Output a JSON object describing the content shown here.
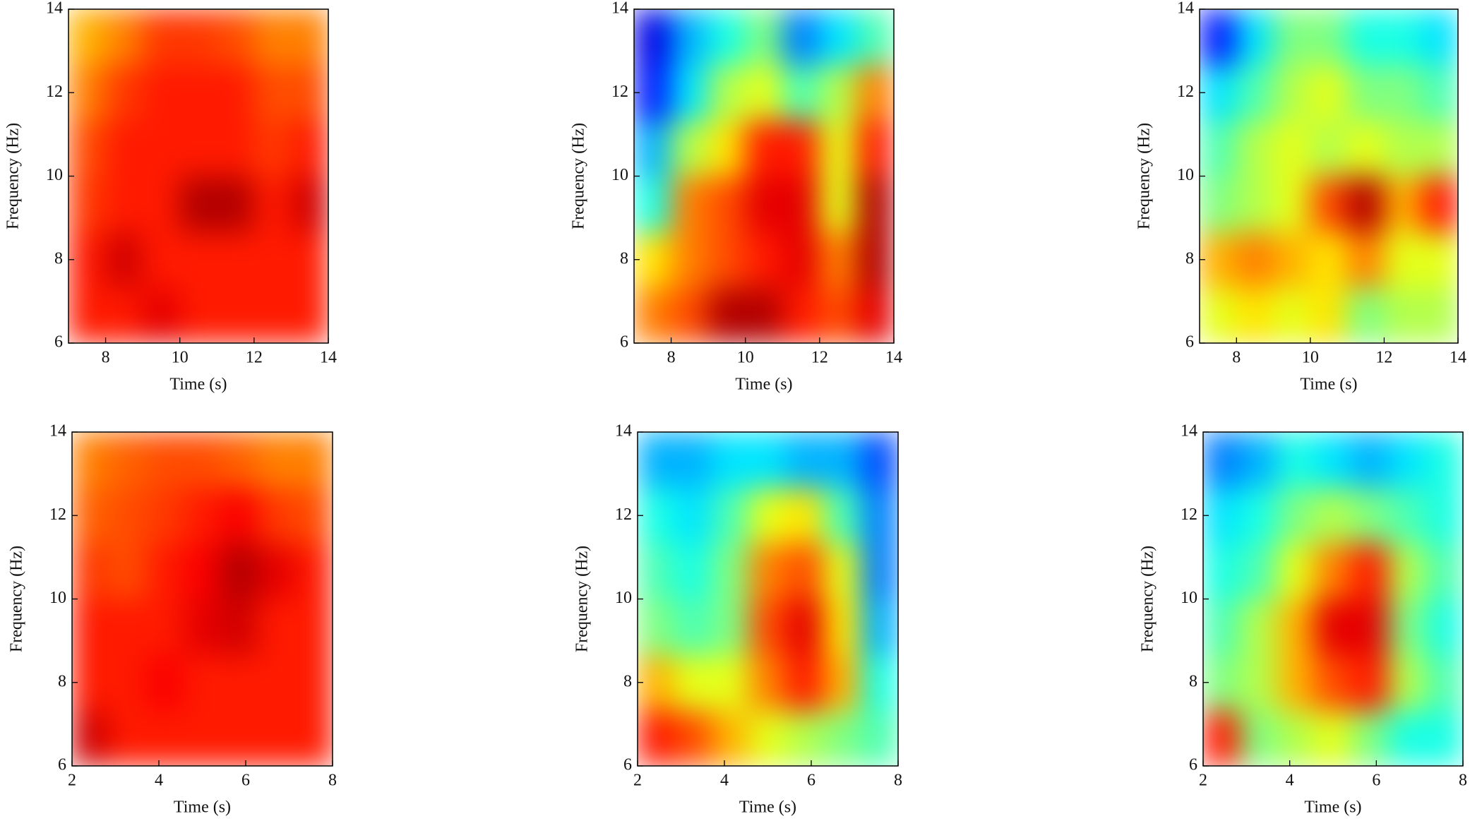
{
  "chart_data": [
    {
      "type": "heatmap",
      "colormap": "jet",
      "xlabel": "Time (s)",
      "ylabel": "Frequency (Hz)",
      "xlim": [
        7,
        14
      ],
      "ylim": [
        6,
        14
      ],
      "xticks": [
        8,
        10,
        12,
        14
      ],
      "yticks": [
        6,
        8,
        10,
        12,
        14
      ],
      "zlim": [
        0,
        1
      ],
      "z": [
        [
          0.85,
          0.85,
          0.9,
          0.85,
          0.85,
          0.85,
          0.85
        ],
        [
          0.85,
          0.92,
          0.85,
          0.85,
          0.85,
          0.85,
          0.85
        ],
        [
          0.82,
          0.85,
          0.85,
          0.95,
          0.95,
          0.85,
          0.92
        ],
        [
          0.8,
          0.85,
          0.85,
          0.85,
          0.85,
          0.82,
          0.85
        ],
        [
          0.75,
          0.82,
          0.85,
          0.85,
          0.85,
          0.8,
          0.8
        ],
        [
          0.7,
          0.75,
          0.82,
          0.82,
          0.8,
          0.75,
          0.75
        ]
      ]
    },
    {
      "type": "heatmap",
      "colormap": "jet",
      "xlabel": "Time (s)",
      "ylabel": "Frequency (Hz)",
      "xlim": [
        7,
        14
      ],
      "ylim": [
        6,
        14
      ],
      "xticks": [
        8,
        10,
        12,
        14
      ],
      "yticks": [
        6,
        8,
        10,
        12,
        14
      ],
      "zlim": [
        0,
        1
      ],
      "z": [
        [
          0.75,
          0.8,
          0.95,
          0.95,
          0.85,
          0.8,
          0.9
        ],
        [
          0.65,
          0.75,
          0.8,
          0.85,
          0.9,
          0.75,
          0.95
        ],
        [
          0.4,
          0.75,
          0.8,
          0.9,
          0.9,
          0.6,
          0.95
        ],
        [
          0.3,
          0.55,
          0.65,
          0.85,
          0.85,
          0.6,
          0.85
        ],
        [
          0.15,
          0.35,
          0.55,
          0.6,
          0.45,
          0.55,
          0.75
        ],
        [
          0.1,
          0.3,
          0.4,
          0.5,
          0.25,
          0.35,
          0.45
        ]
      ]
    },
    {
      "type": "heatmap",
      "colormap": "jet",
      "xlabel": "Time (s)",
      "ylabel": "Frequency (Hz)",
      "xlim": [
        7,
        14
      ],
      "ylim": [
        6,
        14
      ],
      "xticks": [
        8,
        10,
        12,
        14
      ],
      "yticks": [
        6,
        8,
        10,
        12,
        14
      ],
      "zlim": [
        0,
        1
      ],
      "z": [
        [
          0.6,
          0.65,
          0.6,
          0.65,
          0.5,
          0.55,
          0.55
        ],
        [
          0.7,
          0.75,
          0.7,
          0.65,
          0.75,
          0.6,
          0.6
        ],
        [
          0.5,
          0.55,
          0.6,
          0.8,
          0.95,
          0.7,
          0.85
        ],
        [
          0.45,
          0.55,
          0.6,
          0.55,
          0.6,
          0.55,
          0.55
        ],
        [
          0.35,
          0.45,
          0.55,
          0.6,
          0.5,
          0.5,
          0.45
        ],
        [
          0.15,
          0.35,
          0.5,
          0.5,
          0.4,
          0.4,
          0.35
        ]
      ]
    },
    {
      "type": "heatmap",
      "colormap": "jet",
      "xlabel": "Time (s)",
      "ylabel": "Frequency (Hz)",
      "xlim": [
        2,
        8
      ],
      "ylim": [
        6,
        14
      ],
      "xticks": [
        2,
        4,
        6,
        8
      ],
      "yticks": [
        6,
        8,
        10,
        12,
        14
      ],
      "zlim": [
        0,
        1
      ],
      "z": [
        [
          0.92,
          0.85,
          0.85,
          0.85,
          0.85,
          0.85,
          0.85
        ],
        [
          0.85,
          0.85,
          0.88,
          0.85,
          0.85,
          0.85,
          0.85
        ],
        [
          0.85,
          0.85,
          0.85,
          0.9,
          0.92,
          0.85,
          0.85
        ],
        [
          0.82,
          0.8,
          0.85,
          0.88,
          0.95,
          0.9,
          0.85
        ],
        [
          0.78,
          0.8,
          0.82,
          0.85,
          0.88,
          0.82,
          0.8
        ],
        [
          0.75,
          0.78,
          0.8,
          0.8,
          0.78,
          0.75,
          0.75
        ]
      ]
    },
    {
      "type": "heatmap",
      "colormap": "jet",
      "xlabel": "Time (s)",
      "ylabel": "Frequency (Hz)",
      "xlim": [
        2,
        8
      ],
      "ylim": [
        6,
        14
      ],
      "xticks": [
        2,
        4,
        6,
        8
      ],
      "yticks": [
        6,
        8,
        10,
        12,
        14
      ],
      "zlim": [
        0,
        1
      ],
      "z": [
        [
          0.85,
          0.8,
          0.7,
          0.6,
          0.55,
          0.5,
          0.45
        ],
        [
          0.7,
          0.6,
          0.6,
          0.75,
          0.85,
          0.7,
          0.4
        ],
        [
          0.5,
          0.45,
          0.5,
          0.8,
          0.9,
          0.65,
          0.3
        ],
        [
          0.45,
          0.4,
          0.5,
          0.75,
          0.8,
          0.6,
          0.25
        ],
        [
          0.4,
          0.35,
          0.45,
          0.6,
          0.65,
          0.45,
          0.25
        ],
        [
          0.3,
          0.3,
          0.35,
          0.35,
          0.3,
          0.3,
          0.2
        ]
      ]
    },
    {
      "type": "heatmap",
      "colormap": "jet",
      "xlabel": "Time (s)",
      "ylabel": "Frequency (Hz)",
      "xlim": [
        2,
        8
      ],
      "ylim": [
        6,
        14
      ],
      "xticks": [
        2,
        4,
        6,
        8
      ],
      "yticks": [
        6,
        8,
        10,
        12,
        14
      ],
      "zlim": [
        0,
        1
      ],
      "z": [
        [
          0.85,
          0.5,
          0.55,
          0.6,
          0.5,
          0.4,
          0.4
        ],
        [
          0.5,
          0.55,
          0.7,
          0.8,
          0.85,
          0.55,
          0.45
        ],
        [
          0.45,
          0.55,
          0.7,
          0.9,
          0.9,
          0.5,
          0.4
        ],
        [
          0.4,
          0.45,
          0.6,
          0.75,
          0.85,
          0.55,
          0.45
        ],
        [
          0.35,
          0.4,
          0.5,
          0.55,
          0.5,
          0.45,
          0.4
        ],
        [
          0.25,
          0.3,
          0.4,
          0.35,
          0.3,
          0.35,
          0.4
        ]
      ]
    }
  ]
}
